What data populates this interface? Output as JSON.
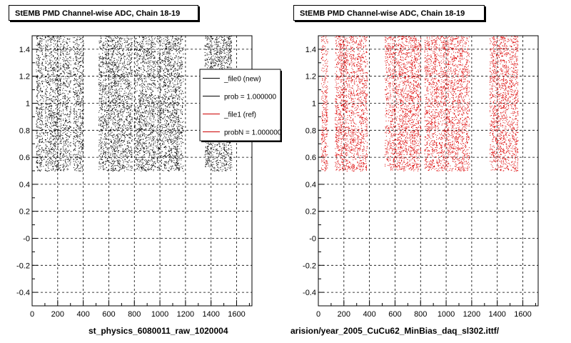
{
  "footer": "",
  "chart_data": [
    {
      "type": "scatter",
      "title": "StEMB PMD Channel-wise ADC, Chain 18-19",
      "xlabel": "st_physics_6080011_raw_1020004",
      "ylabel": "",
      "xlim": [
        0,
        1720
      ],
      "ylim": [
        -0.5,
        1.5
      ],
      "x_ticks": [
        "0",
        "200",
        "400",
        "600",
        "800",
        "1000",
        "1200",
        "1400",
        "1600"
      ],
      "y_ticks": [
        "-0.4",
        "-0.2",
        "-0",
        "0.2",
        "0.4",
        "0.6",
        "0.8",
        "1",
        "1.2",
        "1.4"
      ],
      "grid": true,
      "marker_color": "#000000",
      "y_range_points": [
        0.5,
        1.5
      ],
      "channel_bands": [
        [
          30,
          90
        ],
        [
          100,
          300
        ],
        [
          320,
          400
        ],
        [
          520,
          780
        ],
        [
          800,
          1180
        ],
        [
          1350,
          1560
        ]
      ],
      "legend": {
        "placement": "top-right",
        "entries": [
          {
            "label": "_file0 (new)",
            "color": "#000000"
          },
          {
            "label": "prob = 1.000000",
            "color": "#000000"
          },
          {
            "label": "_file1 (ref)",
            "color": "#cc0000"
          },
          {
            "label": "probN = 1.000000",
            "color": "#cc0000"
          }
        ]
      }
    },
    {
      "type": "scatter",
      "title": "StEMB PMD Channel-wise ADC, Chain 18-19",
      "xlabel": "arision/year_2005_CuCu62_MinBias_daq_sl302.ittf/",
      "ylabel": "",
      "xlim": [
        0,
        1720
      ],
      "ylim": [
        -0.5,
        1.5
      ],
      "x_ticks": [
        "0",
        "200",
        "400",
        "600",
        "800",
        "1000",
        "1200",
        "1400",
        "1600"
      ],
      "y_ticks": [
        "-0.4",
        "-0.2",
        "-0",
        "0.2",
        "0.4",
        "0.6",
        "0.8",
        "1",
        "1.2",
        "1.4"
      ],
      "grid": true,
      "marker_color": "#dd0000",
      "y_range_points": [
        0.5,
        1.5
      ],
      "channel_bands": [
        [
          20,
          70
        ],
        [
          130,
          380
        ],
        [
          520,
          800
        ],
        [
          830,
          1180
        ],
        [
          1340,
          1560
        ]
      ]
    }
  ]
}
